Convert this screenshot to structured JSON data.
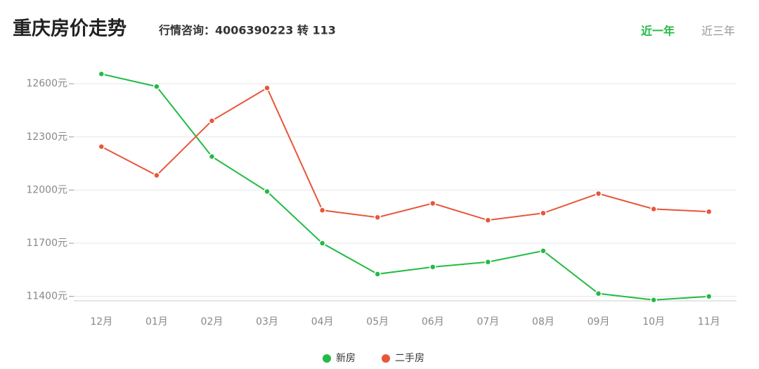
{
  "header": {
    "title": "重庆房价走势",
    "subtitle": "行情咨询：4006390223 转 113",
    "tabs": [
      "近一年",
      "近三年"
    ]
  },
  "chart_data": {
    "type": "line",
    "categories": [
      "12月",
      "01月",
      "02月",
      "03月",
      "04月",
      "05月",
      "06月",
      "07月",
      "08月",
      "09月",
      "10月",
      "11月"
    ],
    "series": [
      {
        "name": "新房",
        "color": "#22bb44",
        "values": [
          12655,
          12584,
          12189,
          11992,
          11700,
          11526,
          11566,
          11594,
          11657,
          11416,
          11380,
          11400
        ]
      },
      {
        "name": "二手房",
        "color": "#e8563a",
        "values": [
          12245,
          12083,
          12391,
          12576,
          11886,
          11846,
          11925,
          11830,
          11870,
          11980,
          11893,
          11878
        ]
      }
    ],
    "ylim": [
      11375,
      12660
    ],
    "yticks": [
      {
        "value": 11400,
        "label": "11400元"
      },
      {
        "value": 11700,
        "label": "11700元"
      },
      {
        "value": 12000,
        "label": "12000元"
      },
      {
        "value": 12300,
        "label": "12300元"
      },
      {
        "value": 12600,
        "label": "12600元"
      }
    ],
    "grid": true
  }
}
